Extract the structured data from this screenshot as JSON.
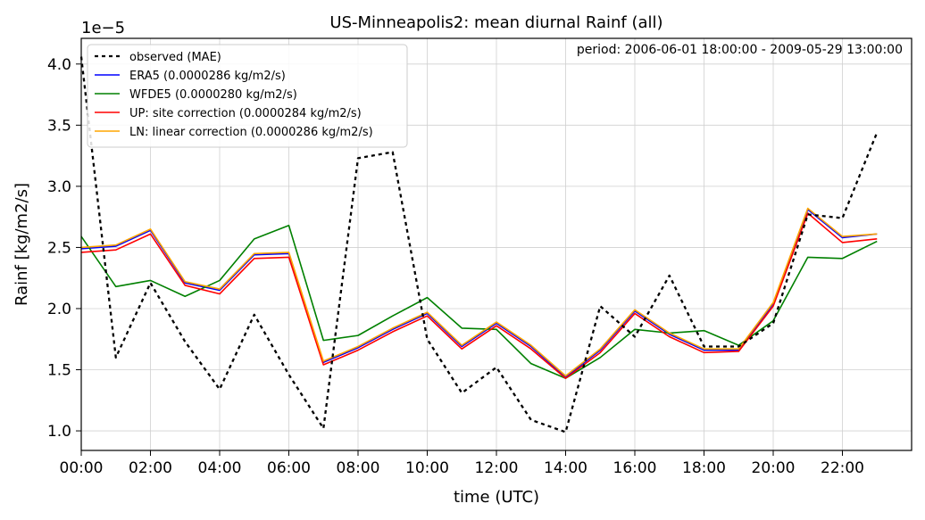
{
  "chart_data": {
    "type": "line",
    "title": "US-Minneapolis2: mean diurnal Rainf (all)",
    "subtitle": "period: 2006-06-01 18:00:00 - 2009-05-29 13:00:00",
    "xlabel": "time (UTC)",
    "ylabel": "Rainf [kg/m2/s]",
    "y_offset_label": "1e−5",
    "xlim": [
      0,
      24
    ],
    "ylim": [
      0.84,
      4.21
    ],
    "x_ticks": [
      0,
      2,
      4,
      6,
      8,
      10,
      12,
      14,
      16,
      18,
      20,
      22
    ],
    "x_tick_labels": [
      "00:00",
      "02:00",
      "04:00",
      "06:00",
      "08:00",
      "10:00",
      "12:00",
      "14:00",
      "16:00",
      "18:00",
      "20:00",
      "22:00"
    ],
    "y_ticks": [
      1.0,
      1.5,
      2.0,
      2.5,
      3.0,
      3.5,
      4.0
    ],
    "y_tick_labels": [
      "1.0",
      "1.5",
      "2.0",
      "2.5",
      "3.0",
      "3.5",
      "4.0"
    ],
    "grid": true,
    "legend_position": "top-left",
    "x": [
      0,
      1,
      2,
      3,
      4,
      5,
      6,
      7,
      8,
      9,
      10,
      11,
      12,
      13,
      14,
      15,
      16,
      17,
      18,
      19,
      20,
      21,
      22,
      23
    ],
    "series": [
      {
        "name": "observed (MAE)",
        "color": "#000000",
        "dashed": true,
        "values": [
          4.06,
          1.6,
          2.21,
          1.73,
          1.34,
          1.95,
          1.46,
          1.02,
          3.23,
          3.28,
          1.75,
          1.31,
          1.52,
          1.09,
          0.99,
          2.02,
          1.77,
          2.27,
          1.69,
          1.69,
          1.88,
          2.77,
          2.74,
          3.44
        ]
      },
      {
        "name": "ERA5 (0.0000286 kg/m2/s)",
        "color": "#0000ff",
        "dashed": false,
        "values": [
          2.49,
          2.51,
          2.64,
          2.21,
          2.15,
          2.44,
          2.45,
          1.56,
          1.68,
          1.83,
          1.96,
          1.69,
          1.88,
          1.69,
          1.44,
          1.66,
          1.98,
          1.79,
          1.66,
          1.66,
          2.04,
          2.81,
          2.58,
          2.61
        ]
      },
      {
        "name": "WFDE5 (0.0000280 kg/m2/s)",
        "color": "#008000",
        "dashed": false,
        "values": [
          2.59,
          2.18,
          2.23,
          2.1,
          2.23,
          2.57,
          2.68,
          1.74,
          1.78,
          1.94,
          2.09,
          1.84,
          1.83,
          1.55,
          1.43,
          1.6,
          1.83,
          1.8,
          1.82,
          1.7,
          1.9,
          2.42,
          2.41,
          2.55
        ]
      },
      {
        "name": "UP: site correction (0.0000284 kg/m2/s)",
        "color": "#ff0000",
        "dashed": false,
        "values": [
          2.46,
          2.48,
          2.61,
          2.19,
          2.12,
          2.41,
          2.42,
          1.54,
          1.66,
          1.81,
          1.94,
          1.67,
          1.86,
          1.67,
          1.43,
          1.64,
          1.96,
          1.77,
          1.64,
          1.65,
          2.02,
          2.78,
          2.54,
          2.57
        ]
      },
      {
        "name": "LN: linear correction (0.0000286 kg/m2/s)",
        "color": "#ffa500",
        "dashed": false,
        "values": [
          2.5,
          2.52,
          2.65,
          2.22,
          2.16,
          2.45,
          2.46,
          1.57,
          1.69,
          1.84,
          1.97,
          1.7,
          1.89,
          1.7,
          1.45,
          1.67,
          1.99,
          1.8,
          1.67,
          1.67,
          2.05,
          2.82,
          2.59,
          2.61
        ]
      }
    ]
  }
}
